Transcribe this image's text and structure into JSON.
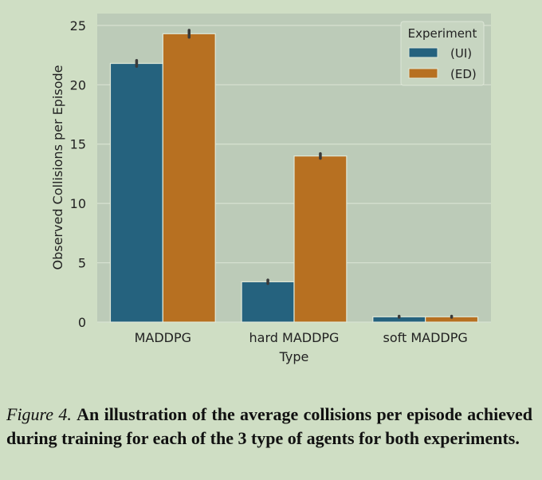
{
  "chart_data": {
    "type": "bar",
    "categories": [
      "MADDPG",
      "hard MADDPG",
      "soft MADDPG"
    ],
    "series": [
      {
        "name": "(UI)",
        "values": [
          21.8,
          3.4,
          0.45
        ],
        "errors": [
          0.25,
          0.15,
          0.05
        ],
        "color": "#25627e"
      },
      {
        "name": "(ED)",
        "values": [
          24.3,
          14.0,
          0.45
        ],
        "errors": [
          0.3,
          0.2,
          0.05
        ],
        "color": "#b77021"
      }
    ],
    "xlabel": "Type",
    "ylabel": "Observed Collisions per Episode",
    "ylim": [
      0,
      26
    ],
    "yticks": [
      0,
      5,
      10,
      15,
      20,
      25
    ],
    "legend_title": "Experiment",
    "legend_position": "top-right",
    "grid": true
  },
  "caption": {
    "label": "Figure 4.",
    "text": "An illustration of the average collisions per episode achieved during training for each of the 3 type of agents for both experiments."
  },
  "colors": {
    "page_background": "#cfdec4",
    "plot_background": "#bccbb8",
    "grid": "#d7e2d1"
  }
}
